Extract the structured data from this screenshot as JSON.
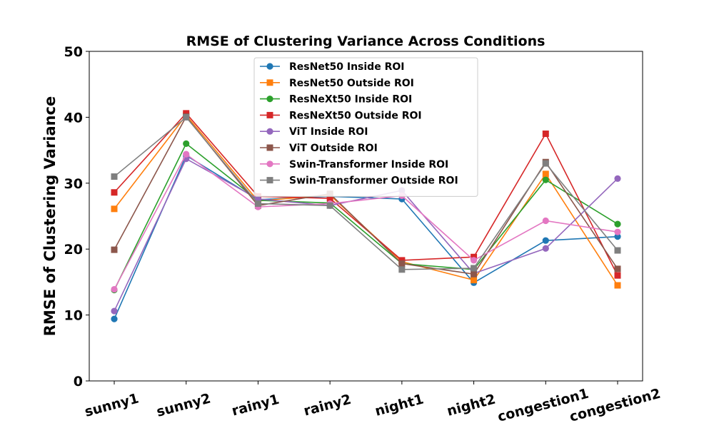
{
  "chart_data": {
    "type": "line",
    "title": "RMSE of Clustering Variance Across Conditions",
    "xlabel": "",
    "ylabel": "RMSE of Clustering Variance",
    "categories": [
      "sunny1",
      "sunny2",
      "rainy1",
      "rainy2",
      "night1",
      "night2",
      "congestion1",
      "congestion2"
    ],
    "ylim": [
      0,
      50
    ],
    "yticks": [
      0,
      10,
      20,
      30,
      40,
      50
    ],
    "grid": false,
    "legend_position": "top-center",
    "series": [
      {
        "name": "ResNet50 Inside ROI",
        "color": "#1f77b4",
        "marker": "circle",
        "values": [
          9.4,
          34.2,
          27.5,
          28.0,
          27.6,
          14.9,
          21.3,
          21.9
        ]
      },
      {
        "name": "ResNet50 Outside ROI",
        "color": "#ff7f0e",
        "marker": "square",
        "values": [
          26.1,
          40.3,
          27.3,
          28.2,
          18.1,
          15.3,
          31.4,
          14.5
        ]
      },
      {
        "name": "ResNeXt50 Inside ROI",
        "color": "#2ca02c",
        "marker": "circle",
        "values": [
          13.8,
          36.0,
          27.4,
          27.0,
          17.8,
          16.9,
          30.5,
          23.8
        ]
      },
      {
        "name": "ResNeXt50 Outside ROI",
        "color": "#d62728",
        "marker": "square",
        "values": [
          28.6,
          40.6,
          28.0,
          27.7,
          18.3,
          18.8,
          37.5,
          16.0
        ]
      },
      {
        "name": "ViT Inside ROI",
        "color": "#9467bd",
        "marker": "circle",
        "values": [
          10.6,
          33.7,
          27.6,
          26.6,
          28.9,
          16.3,
          20.1,
          30.7
        ]
      },
      {
        "name": "ViT Outside ROI",
        "color": "#8c564b",
        "marker": "square",
        "values": [
          19.9,
          40.1,
          26.6,
          28.4,
          17.8,
          16.2,
          33.2,
          17.0
        ]
      },
      {
        "name": "Swin-Transformer Inside ROI",
        "color": "#e377c2",
        "marker": "circle",
        "values": [
          13.9,
          34.4,
          26.4,
          26.9,
          28.1,
          18.3,
          24.3,
          22.6
        ]
      },
      {
        "name": "Swin-Transformer Outside ROI",
        "color": "#7f7f7f",
        "marker": "square",
        "values": [
          31.0,
          40.0,
          26.9,
          26.6,
          16.9,
          17.1,
          33.0,
          19.8
        ]
      }
    ]
  }
}
